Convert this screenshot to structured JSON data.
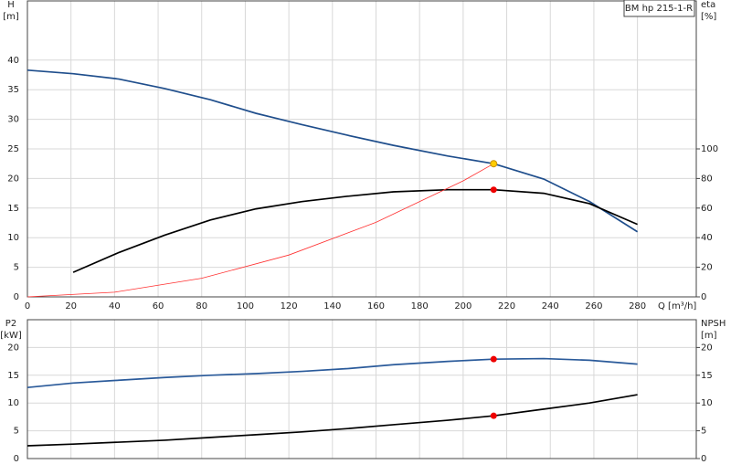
{
  "chart_data": [
    {
      "type": "line",
      "title": "BM hp 215-1-R",
      "xlabel": "Q [m³/h]",
      "ylabel": "H",
      "yunit": "[m]",
      "y2label": "eta",
      "y2unit": "[%]",
      "xlim": [
        0,
        307
      ],
      "xticks": [
        0,
        20,
        40,
        60,
        80,
        100,
        120,
        140,
        160,
        180,
        200,
        220,
        240,
        260,
        280
      ],
      "ylim": [
        0,
        50
      ],
      "yticks": [
        0,
        5,
        10,
        15,
        20,
        25,
        30,
        35,
        40
      ],
      "y2lim": [
        0,
        200
      ],
      "y2ticks": [
        0,
        20,
        40,
        60,
        80,
        100
      ],
      "grid": true,
      "series": [
        {
          "color": "#1f4e8c",
          "x": [
            0,
            21,
            42,
            63,
            84,
            105,
            126,
            147,
            168,
            193,
            214,
            237,
            258,
            280
          ],
          "values": [
            38.3,
            37.7,
            36.8,
            35.2,
            33.3,
            31.0,
            29.1,
            27.3,
            25.6,
            23.8,
            22.5,
            19.9,
            16.1,
            11.0
          ]
        },
        {
          "color": "#000000",
          "axis": "y2",
          "x": [
            21,
            42,
            63,
            84,
            105,
            126,
            147,
            168,
            193,
            214,
            237,
            258,
            280
          ],
          "values": [
            16.6,
            30,
            41.7,
            52,
            59.5,
            64.4,
            68,
            71,
            72.4,
            72.4,
            70,
            63,
            49
          ]
        },
        {
          "color": "#ff3030",
          "x": [
            0,
            40,
            80,
            120,
            160,
            200,
            214
          ],
          "values": [
            0,
            0.79,
            3.14,
            7.07,
            12.6,
            19.6,
            22.5
          ]
        }
      ],
      "points": [
        {
          "x": 214,
          "y": 22.5,
          "color": "#ffcc00"
        },
        {
          "x": 214,
          "y": 72.4,
          "color": "#ee0000",
          "axis": "y2"
        }
      ]
    },
    {
      "type": "line",
      "ylabel": "P2",
      "yunit": "[kW]",
      "y2label": "NPSH",
      "y2unit": "[m]",
      "xlim": [
        0,
        307
      ],
      "ylim": [
        0,
        25
      ],
      "yticks": [
        0,
        5,
        10,
        15,
        20
      ],
      "y2lim": [
        0,
        25
      ],
      "y2ticks": [
        0,
        5,
        10,
        15,
        20
      ],
      "grid": true,
      "series": [
        {
          "color": "#2a5a9a",
          "x": [
            0,
            21,
            42,
            63,
            84,
            105,
            126,
            147,
            168,
            193,
            214,
            237,
            258,
            280
          ],
          "values": [
            12.8,
            13.6,
            14.1,
            14.6,
            15,
            15.3,
            15.7,
            16.2,
            16.9,
            17.5,
            17.9,
            18.0,
            17.7,
            17.0
          ]
        },
        {
          "color": "#000000",
          "axis": "y2",
          "x": [
            0,
            21,
            42,
            63,
            84,
            105,
            126,
            147,
            168,
            193,
            214,
            237,
            258,
            280
          ],
          "values": [
            2.3,
            2.6,
            2.95,
            3.3,
            3.8,
            4.3,
            4.8,
            5.4,
            6.1,
            6.9,
            7.7,
            8.9,
            10.0,
            11.5
          ]
        }
      ],
      "points": [
        {
          "x": 214,
          "y": 17.9,
          "color": "#ee0000"
        },
        {
          "x": 214,
          "y": 7.7,
          "color": "#ee0000",
          "axis": "y2"
        }
      ]
    }
  ]
}
